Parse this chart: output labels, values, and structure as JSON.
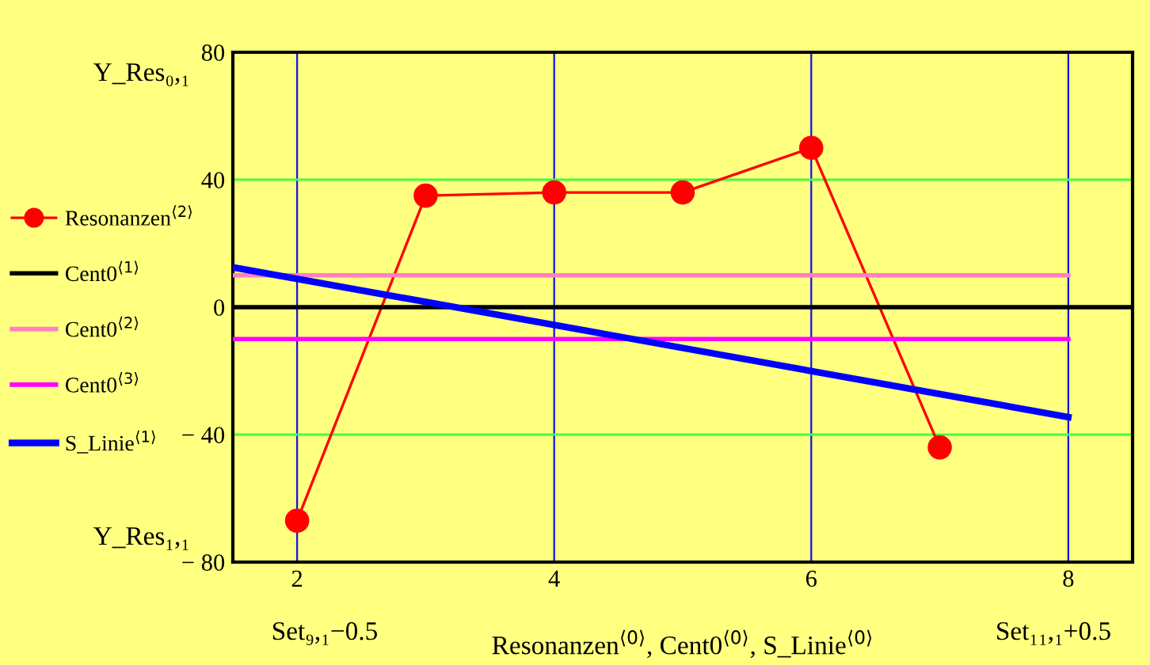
{
  "chart_data": {
    "type": "line",
    "xlabel": "Resonanzen$^{⟨0⟩}$, Cent0$^{⟨0⟩}$, S_Linie$^{⟨0⟩}$",
    "annotations": [
      "Y_Res₀,₁",
      "Y_Res₁,₁",
      "Set₉,₁−0.5",
      "Set₁₁,₁+0.5"
    ],
    "series": [
      {
        "name": "Resonanzen$^{⟨2⟩}$",
        "color": "#ff0000",
        "marker": "circle",
        "x": [
          2,
          3,
          4,
          5,
          6,
          7
        ],
        "values": [
          -67,
          35,
          36,
          36,
          50,
          -44
        ]
      },
      {
        "name": "Cent0$^{⟨1⟩}$",
        "color": "#000000",
        "x": [
          1.5,
          8.5
        ],
        "values": [
          0,
          0
        ]
      },
      {
        "name": "Cent0$^{⟨2⟩}$",
        "color": "#ff80c0",
        "x": [
          1.5,
          8
        ],
        "values": [
          10,
          10
        ]
      },
      {
        "name": "Cent0$^{⟨3⟩}$",
        "color": "#ff00ff",
        "x": [
          1.5,
          8
        ],
        "values": [
          -10,
          -10
        ]
      },
      {
        "name": "S_Linie$^{⟨1⟩}$",
        "color": "#0000ff",
        "x": [
          1.5,
          8
        ],
        "values": [
          12.5,
          -34.5
        ]
      }
    ],
    "xlim": [
      1.5,
      8.5
    ],
    "ylim": [
      -80,
      80
    ],
    "xticks": [
      2,
      4,
      6,
      8
    ],
    "yticks": [
      -80,
      -40,
      0,
      40,
      80
    ],
    "grid": true,
    "legend": "left",
    "line_style": "solid"
  }
}
